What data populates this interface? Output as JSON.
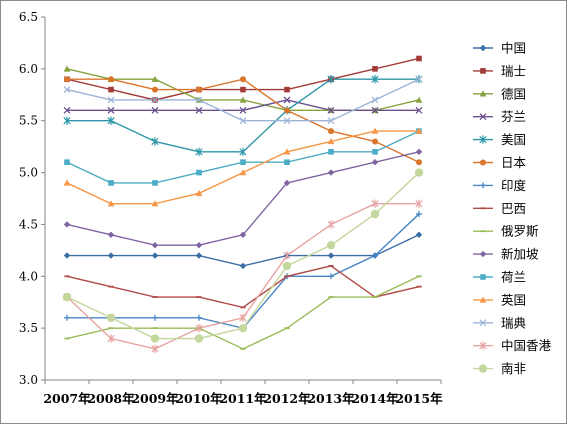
{
  "chart_data": {
    "type": "line",
    "title": "",
    "xlabel": "",
    "ylabel": "",
    "categories": [
      "2007年",
      "2008年",
      "2009年",
      "2010年",
      "2011年",
      "2012年",
      "2013年",
      "2014年",
      "2015年"
    ],
    "ylim": [
      3.0,
      6.5
    ],
    "yticks": [
      "3.0",
      "3.5",
      "4.0",
      "4.5",
      "5.0",
      "5.5",
      "6.0",
      "6.5"
    ],
    "grid": false,
    "legend_position": "right",
    "series": [
      {
        "name": "中国",
        "color": "#3a6ea5",
        "marker": "diamond",
        "values": [
          4.2,
          4.2,
          4.2,
          4.2,
          4.1,
          4.2,
          4.2,
          4.2,
          4.4
        ]
      },
      {
        "name": "瑞士",
        "color": "#a33b38",
        "marker": "square",
        "values": [
          5.9,
          5.8,
          5.7,
          5.8,
          5.8,
          5.8,
          5.9,
          6.0,
          6.1
        ]
      },
      {
        "name": "德国",
        "color": "#86a33d",
        "marker": "triangle",
        "values": [
          6.0,
          5.9,
          5.9,
          5.7,
          5.7,
          5.6,
          5.6,
          5.6,
          5.7
        ]
      },
      {
        "name": "芬兰",
        "color": "#6a4f8f",
        "marker": "x",
        "values": [
          5.6,
          5.6,
          5.6,
          5.6,
          5.6,
          5.7,
          5.6,
          5.6,
          5.6
        ]
      },
      {
        "name": "美国",
        "color": "#2d97a8",
        "marker": "star",
        "values": [
          5.5,
          5.5,
          5.3,
          5.2,
          5.2,
          5.6,
          5.9,
          5.9,
          5.9
        ]
      },
      {
        "name": "日本",
        "color": "#d9762b",
        "marker": "circle",
        "values": [
          5.9,
          5.9,
          5.8,
          5.8,
          5.9,
          5.6,
          5.4,
          5.3,
          5.1
        ]
      },
      {
        "name": "印度",
        "color": "#4a86c6",
        "marker": "plus",
        "values": [
          3.6,
          3.6,
          3.6,
          3.6,
          3.5,
          4.0,
          4.0,
          4.2,
          4.6
        ]
      },
      {
        "name": "巴西",
        "color": "#b04a46",
        "marker": "dash",
        "values": [
          4.0,
          3.9,
          3.8,
          3.8,
          3.7,
          4.0,
          4.1,
          3.8,
          3.9
        ]
      },
      {
        "name": "俄罗斯",
        "color": "#9bbb59",
        "marker": "dash",
        "values": [
          3.4,
          3.5,
          3.5,
          3.5,
          3.3,
          3.5,
          3.8,
          3.8,
          4.0
        ]
      },
      {
        "name": "新加坡",
        "color": "#7e64a0",
        "marker": "diamond",
        "values": [
          4.5,
          4.4,
          4.3,
          4.3,
          4.4,
          4.9,
          5.0,
          5.1,
          5.2
        ]
      },
      {
        "name": "荷兰",
        "color": "#4bacc6",
        "marker": "square",
        "values": [
          5.1,
          4.9,
          4.9,
          5.0,
          5.1,
          5.1,
          5.2,
          5.2,
          5.4
        ]
      },
      {
        "name": "英国",
        "color": "#f79646",
        "marker": "triangle",
        "values": [
          4.9,
          4.7,
          4.7,
          4.8,
          5.0,
          5.2,
          5.3,
          5.4,
          5.4
        ]
      },
      {
        "name": "瑞典",
        "color": "#9db4d8",
        "marker": "x",
        "values": [
          5.8,
          5.7,
          5.7,
          5.7,
          5.5,
          5.5,
          5.5,
          5.7,
          5.9
        ]
      },
      {
        "name": "中国香港",
        "color": "#e6a3a1",
        "marker": "star",
        "values": [
          3.8,
          3.4,
          3.3,
          3.5,
          3.6,
          4.2,
          4.5,
          4.7,
          4.7
        ]
      },
      {
        "name": "南非",
        "color": "#c3d69b",
        "marker": "circle",
        "values": [
          3.8,
          3.6,
          3.4,
          3.4,
          3.5,
          4.1,
          4.3,
          4.6,
          5.0
        ]
      }
    ]
  }
}
